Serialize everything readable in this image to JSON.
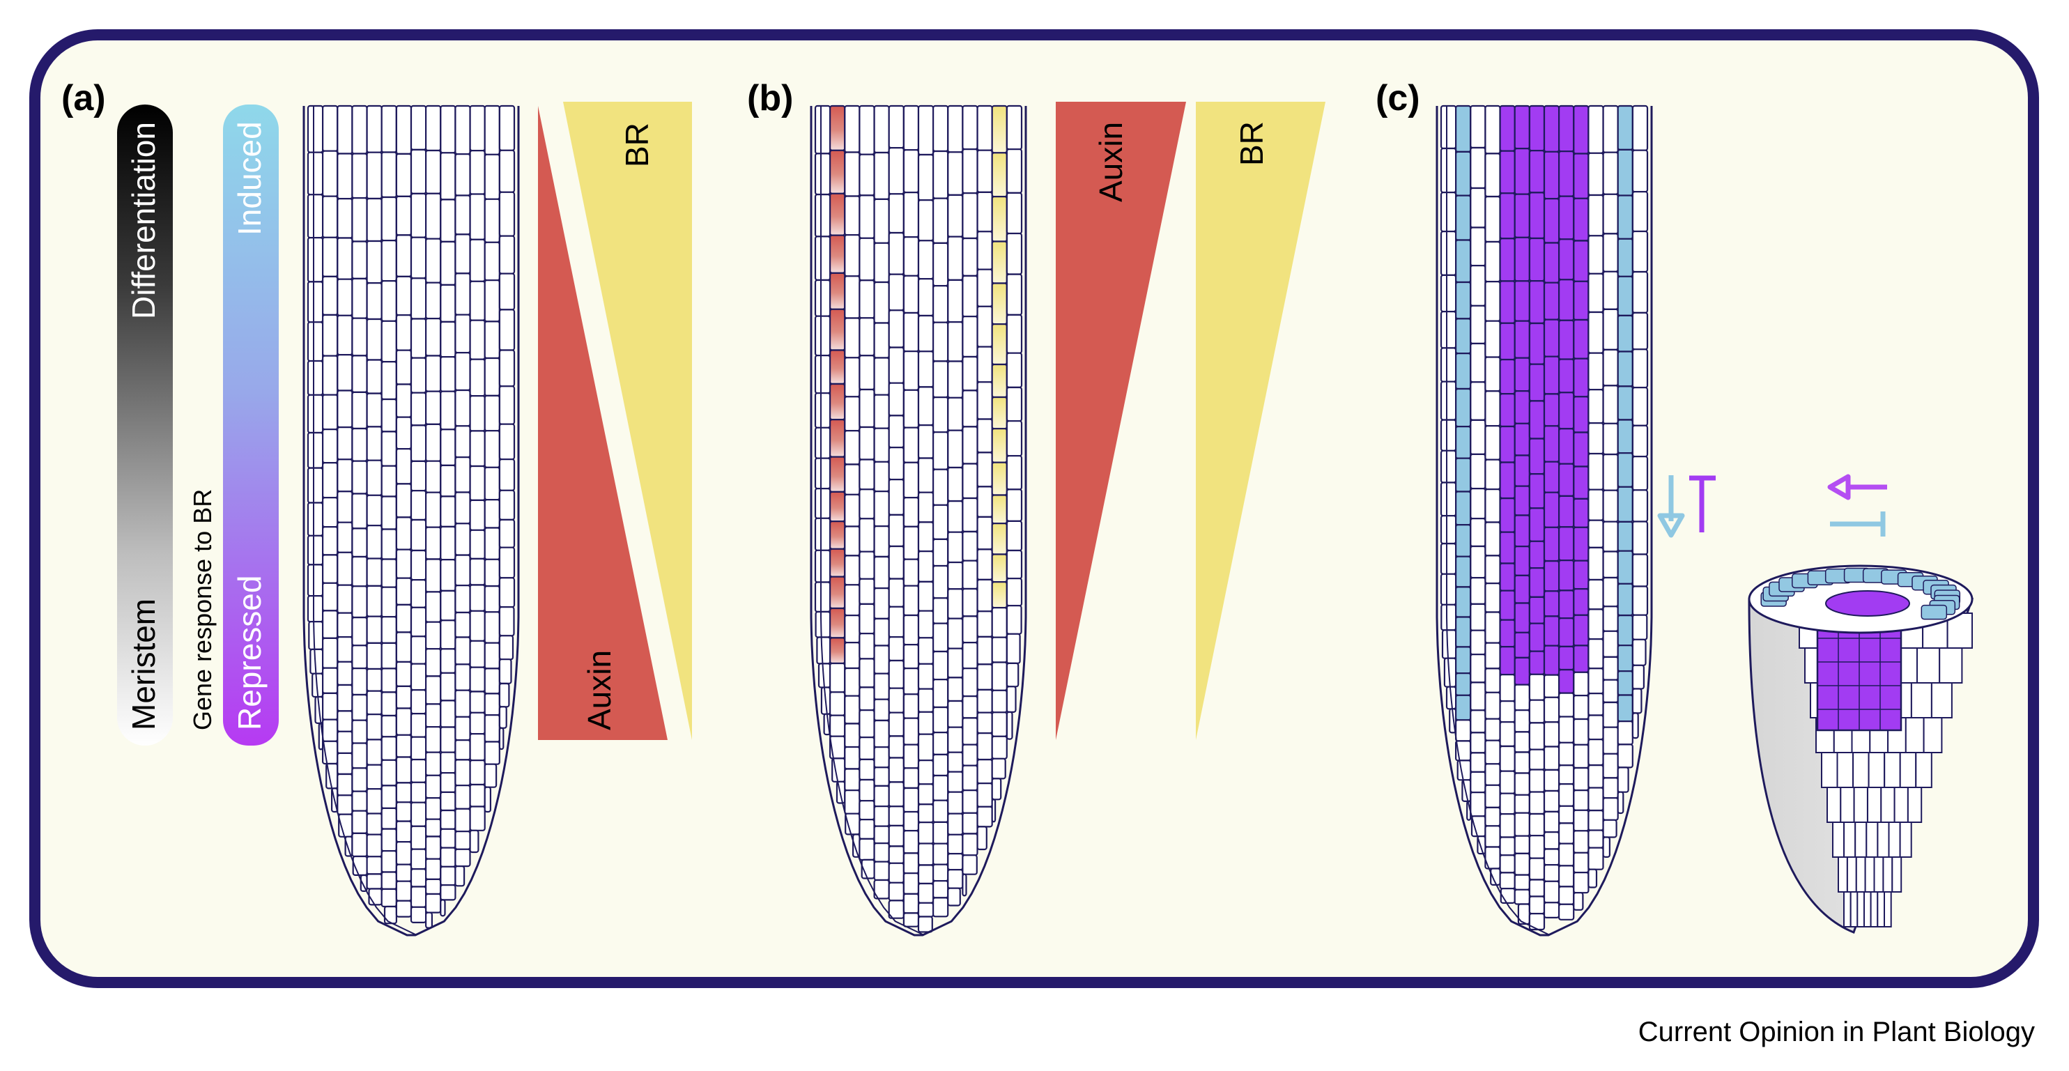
{
  "panels": [
    {
      "id": "a",
      "label": "(a)"
    },
    {
      "id": "b",
      "label": "(b)"
    },
    {
      "id": "c",
      "label": "(c)"
    }
  ],
  "panel_a": {
    "gradient_bar_1": {
      "top_label": "Differentiation",
      "bottom_label": "Meristem"
    },
    "gene_response_label": "Gene response to BR",
    "gradient_bar_2": {
      "top_label": "Induced",
      "bottom_label": "Repressed"
    },
    "wedges": {
      "auxin_label": "Auxin",
      "br_label": "BR"
    }
  },
  "panel_b": {
    "wedges": {
      "auxin_label": "Auxin",
      "br_label": "BR"
    }
  },
  "colors": {
    "border": "#251a6b",
    "background": "#fbfbee",
    "cell_outline": "#1e1a5c",
    "auxin": "#d45a52",
    "br": "#f1e37f",
    "induced": "#8fd3e8",
    "repressed": "#a12ff0",
    "blue_tissue": "#93c8e2",
    "purple_tissue": "#a23cf2"
  },
  "journal": "Current Opinion in Plant Biology"
}
